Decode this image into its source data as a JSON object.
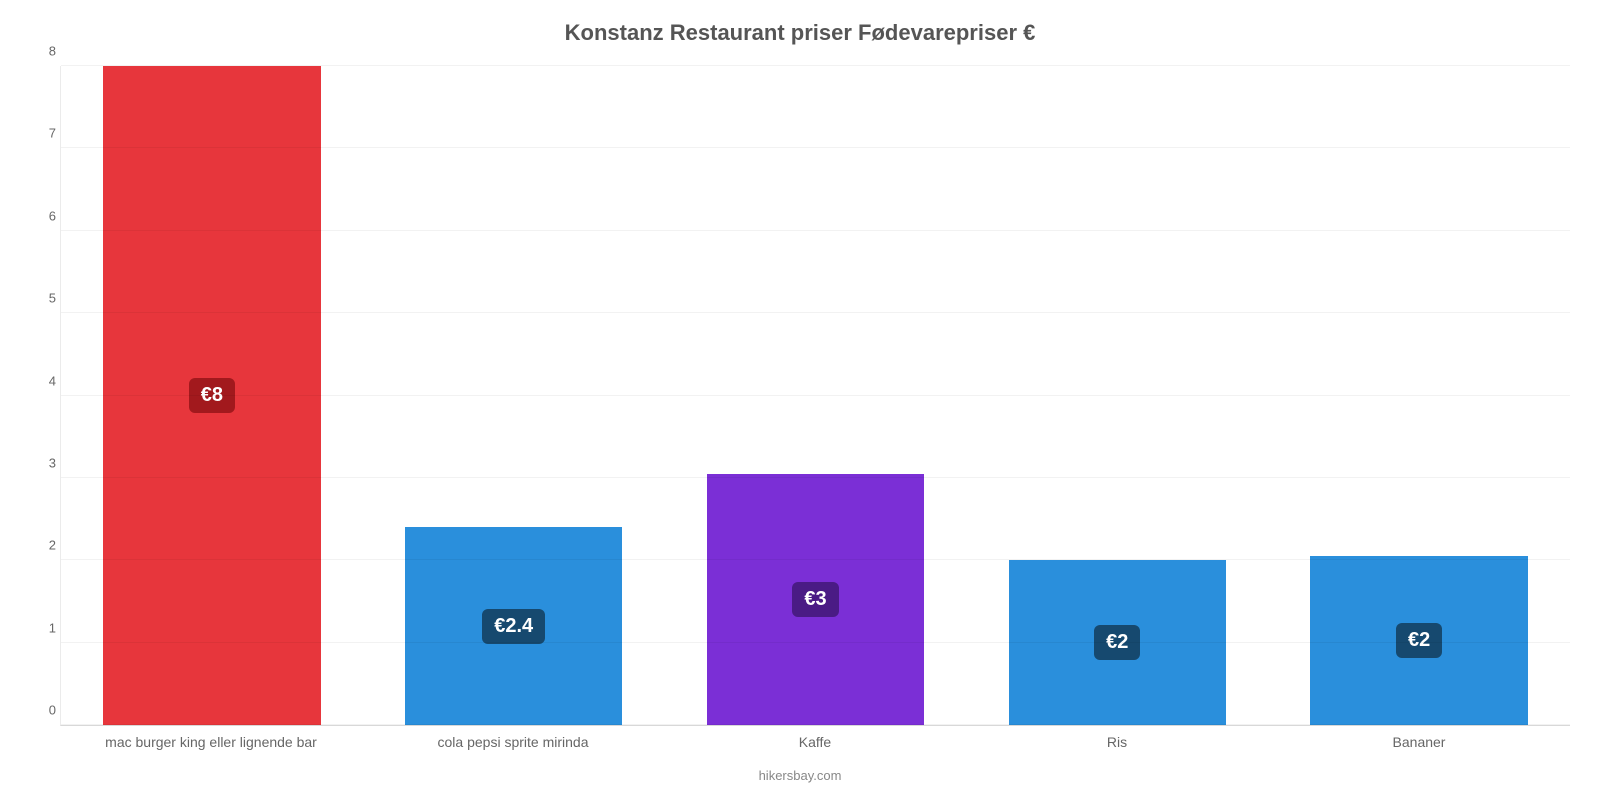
{
  "chart": {
    "type": "bar",
    "title": "Konstanz Restaurant priser Fødevarepriser €",
    "title_fontsize": 22,
    "title_color": "#555555",
    "credit": "hikersbay.com",
    "credit_color": "#888888",
    "background_color": "#ffffff",
    "grid_color": "rgba(0,0,0,0.05)",
    "axis_label_color": "#666666",
    "axis_label_fontsize": 13,
    "x_label_fontsize": 14,
    "ylim": [
      0,
      8
    ],
    "ytick_step": 1,
    "yticks": [
      0,
      1,
      2,
      3,
      4,
      5,
      6,
      7,
      8
    ],
    "bar_width_pct": 72,
    "badge_fontsize": 20,
    "categories": [
      "mac burger king eller lignende bar",
      "cola pepsi sprite mirinda",
      "Kaffe",
      "Ris",
      "Bananer"
    ],
    "values": [
      8,
      2.4,
      3.05,
      2,
      2.05
    ],
    "value_labels": [
      "€8",
      "€2.4",
      "€3",
      "€2",
      "€2"
    ],
    "bar_colors": [
      "#e7363c",
      "#2a8fdc",
      "#7b2fd6",
      "#2a8fdc",
      "#2a8fdc"
    ],
    "badge_bg_colors": [
      "#a2191d",
      "#16496f",
      "#4a1b85",
      "#16496f",
      "#16496f"
    ]
  }
}
